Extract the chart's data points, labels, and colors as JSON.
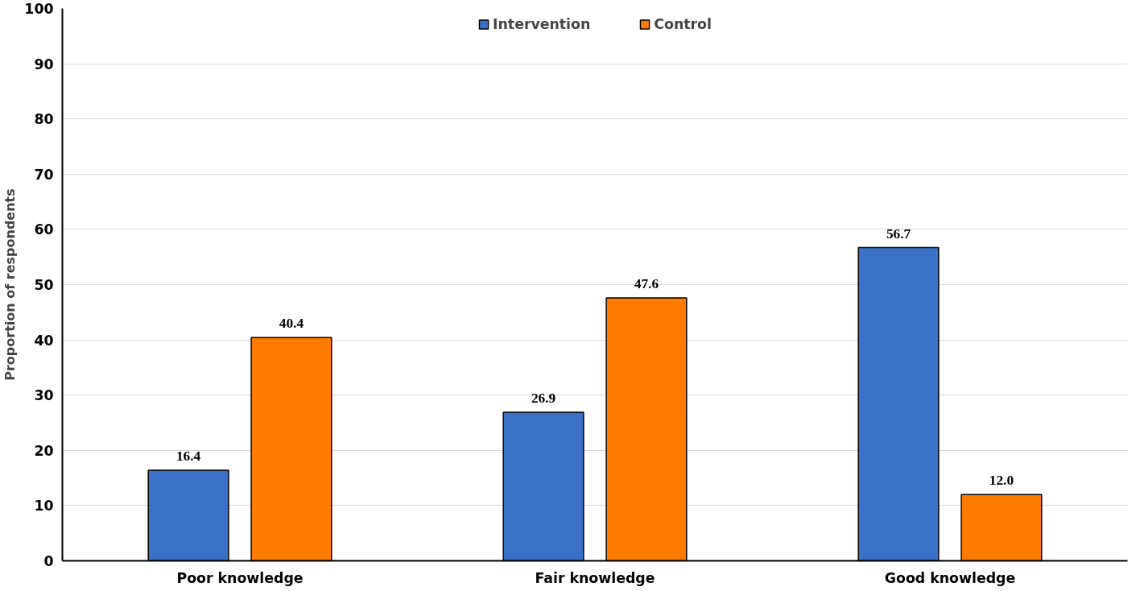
{
  "chart_data": {
    "type": "bar",
    "ylabel": "Proportion of respondents",
    "categories": [
      "Poor knowledge",
      "Fair knowledge",
      "Good knowledge"
    ],
    "series": [
      {
        "name": "Intervention",
        "color": "#3a70c8",
        "values": [
          16.4,
          26.9,
          56.7
        ],
        "value_labels": [
          "16.4",
          "26.9",
          "56.7"
        ]
      },
      {
        "name": "Control",
        "color": "#ff7c00",
        "values": [
          40.4,
          47.6,
          12.0
        ],
        "value_labels": [
          "40.4",
          "47.6",
          "12.0"
        ]
      }
    ],
    "ylim": [
      0,
      100
    ],
    "yticks": [
      0,
      10,
      20,
      30,
      40,
      50,
      60,
      70,
      80,
      90,
      100
    ],
    "grid": "y",
    "legend": "top"
  }
}
